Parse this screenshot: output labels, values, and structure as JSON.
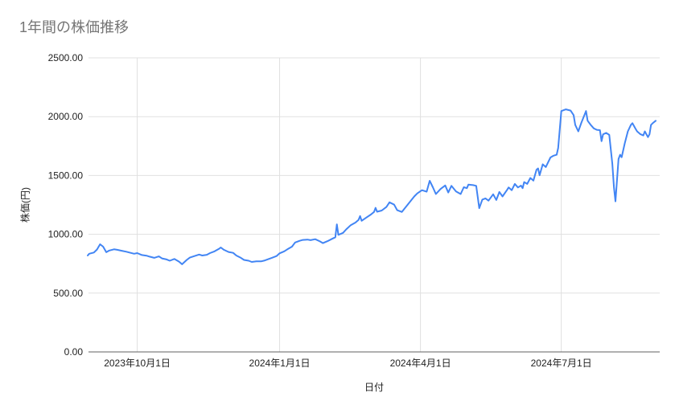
{
  "page": {
    "title": "1年間の株価推移"
  },
  "chart_data": {
    "type": "line",
    "title": "1年間の株価推移",
    "xlabel": "日付",
    "ylabel": "株価(円)",
    "legend": "none",
    "grid": true,
    "colors": {
      "series": "#4285f4",
      "grid": "#e0e0e0",
      "axis_line": "#616161",
      "title_text": "#757575",
      "tick_text": "#212121"
    },
    "ylim": [
      0,
      2500
    ],
    "y_ticks": [
      {
        "value": 0,
        "label": "0.00"
      },
      {
        "value": 500,
        "label": "500.00"
      },
      {
        "value": 1000,
        "label": "1000.00"
      },
      {
        "value": 1500,
        "label": "1500.00"
      },
      {
        "value": 2000,
        "label": "2000.00"
      },
      {
        "value": 2500,
        "label": "2500.00"
      }
    ],
    "x_ticks": [
      {
        "date": "2023-10-01",
        "label": "2023年10月1日"
      },
      {
        "date": "2024-01-01",
        "label": "2024年1月1日"
      },
      {
        "date": "2024-04-01",
        "label": "2024年4月1日"
      },
      {
        "date": "2024-07-01",
        "label": "2024年7月1日"
      }
    ],
    "points": [
      [
        "2023-08-30",
        820
      ],
      [
        "2023-08-31",
        835
      ],
      [
        "2023-09-03",
        845
      ],
      [
        "2023-09-05",
        870
      ],
      [
        "2023-09-07",
        915
      ],
      [
        "2023-09-09",
        895
      ],
      [
        "2023-09-11",
        848
      ],
      [
        "2023-09-13",
        862
      ],
      [
        "2023-09-16",
        872
      ],
      [
        "2023-09-18",
        868
      ],
      [
        "2023-09-21",
        860
      ],
      [
        "2023-09-24",
        852
      ],
      [
        "2023-09-26",
        845
      ],
      [
        "2023-09-29",
        835
      ],
      [
        "2023-10-01",
        840
      ],
      [
        "2023-10-04",
        824
      ],
      [
        "2023-10-07",
        818
      ],
      [
        "2023-10-09",
        810
      ],
      [
        "2023-10-12",
        800
      ],
      [
        "2023-10-15",
        812
      ],
      [
        "2023-10-17",
        795
      ],
      [
        "2023-10-20",
        786
      ],
      [
        "2023-10-22",
        775
      ],
      [
        "2023-10-25",
        790
      ],
      [
        "2023-10-28",
        768
      ],
      [
        "2023-10-30",
        745
      ],
      [
        "2023-11-02",
        782
      ],
      [
        "2023-11-04",
        802
      ],
      [
        "2023-11-07",
        815
      ],
      [
        "2023-11-10",
        828
      ],
      [
        "2023-11-12",
        820
      ],
      [
        "2023-11-15",
        826
      ],
      [
        "2023-11-17",
        840
      ],
      [
        "2023-11-20",
        855
      ],
      [
        "2023-11-23",
        878
      ],
      [
        "2023-11-24",
        888
      ],
      [
        "2023-11-26",
        868
      ],
      [
        "2023-11-29",
        850
      ],
      [
        "2023-12-02",
        842
      ],
      [
        "2023-12-04",
        820
      ],
      [
        "2023-12-07",
        800
      ],
      [
        "2023-12-09",
        782
      ],
      [
        "2023-12-12",
        775
      ],
      [
        "2023-12-14",
        765
      ],
      [
        "2023-12-17",
        770
      ],
      [
        "2023-12-20",
        770
      ],
      [
        "2023-12-22",
        776
      ],
      [
        "2023-12-25",
        790
      ],
      [
        "2023-12-27",
        800
      ],
      [
        "2023-12-30",
        815
      ],
      [
        "2024-01-01",
        838
      ],
      [
        "2024-01-04",
        855
      ],
      [
        "2024-01-06",
        872
      ],
      [
        "2024-01-09",
        895
      ],
      [
        "2024-01-11",
        930
      ],
      [
        "2024-01-14",
        945
      ],
      [
        "2024-01-16",
        952
      ],
      [
        "2024-01-19",
        955
      ],
      [
        "2024-01-21",
        950
      ],
      [
        "2024-01-24",
        958
      ],
      [
        "2024-01-27",
        940
      ],
      [
        "2024-01-29",
        925
      ],
      [
        "2024-02-01",
        942
      ],
      [
        "2024-02-04",
        962
      ],
      [
        "2024-02-06",
        975
      ],
      [
        "2024-02-07",
        1085
      ],
      [
        "2024-02-08",
        995
      ],
      [
        "2024-02-11",
        1012
      ],
      [
        "2024-02-13",
        1042
      ],
      [
        "2024-02-16",
        1078
      ],
      [
        "2024-02-19",
        1100
      ],
      [
        "2024-02-21",
        1122
      ],
      [
        "2024-02-22",
        1155
      ],
      [
        "2024-02-23",
        1115
      ],
      [
        "2024-02-26",
        1142
      ],
      [
        "2024-02-29",
        1168
      ],
      [
        "2024-03-02",
        1190
      ],
      [
        "2024-03-03",
        1225
      ],
      [
        "2024-03-04",
        1192
      ],
      [
        "2024-03-07",
        1202
      ],
      [
        "2024-03-10",
        1232
      ],
      [
        "2024-03-12",
        1272
      ],
      [
        "2024-03-15",
        1252
      ],
      [
        "2024-03-17",
        1205
      ],
      [
        "2024-03-20",
        1190
      ],
      [
        "2024-03-23",
        1240
      ],
      [
        "2024-03-25",
        1272
      ],
      [
        "2024-03-28",
        1322
      ],
      [
        "2024-03-30",
        1348
      ],
      [
        "2024-04-02",
        1375
      ],
      [
        "2024-04-05",
        1362
      ],
      [
        "2024-04-07",
        1455
      ],
      [
        "2024-04-09",
        1400
      ],
      [
        "2024-04-11",
        1342
      ],
      [
        "2024-04-14",
        1385
      ],
      [
        "2024-04-17",
        1415
      ],
      [
        "2024-04-19",
        1355
      ],
      [
        "2024-04-21",
        1412
      ],
      [
        "2024-04-24",
        1365
      ],
      [
        "2024-04-27",
        1342
      ],
      [
        "2024-04-29",
        1400
      ],
      [
        "2024-05-01",
        1392
      ],
      [
        "2024-05-02",
        1422
      ],
      [
        "2024-05-05",
        1418
      ],
      [
        "2024-05-07",
        1412
      ],
      [
        "2024-05-09",
        1222
      ],
      [
        "2024-05-11",
        1295
      ],
      [
        "2024-05-13",
        1305
      ],
      [
        "2024-05-15",
        1286
      ],
      [
        "2024-05-18",
        1340
      ],
      [
        "2024-05-20",
        1292
      ],
      [
        "2024-05-22",
        1360
      ],
      [
        "2024-05-24",
        1322
      ],
      [
        "2024-05-27",
        1378
      ],
      [
        "2024-05-28",
        1398
      ],
      [
        "2024-05-30",
        1375
      ],
      [
        "2024-06-01",
        1428
      ],
      [
        "2024-06-03",
        1398
      ],
      [
        "2024-06-05",
        1414
      ],
      [
        "2024-06-06",
        1392
      ],
      [
        "2024-06-07",
        1444
      ],
      [
        "2024-06-09",
        1428
      ],
      [
        "2024-06-11",
        1479
      ],
      [
        "2024-06-13",
        1456
      ],
      [
        "2024-06-15",
        1550
      ],
      [
        "2024-06-16",
        1560
      ],
      [
        "2024-06-17",
        1502
      ],
      [
        "2024-06-19",
        1595
      ],
      [
        "2024-06-21",
        1572
      ],
      [
        "2024-06-24",
        1653
      ],
      [
        "2024-06-26",
        1668
      ],
      [
        "2024-06-28",
        1676
      ],
      [
        "2024-06-29",
        1734
      ],
      [
        "2024-07-01",
        2048
      ],
      [
        "2024-07-04",
        2062
      ],
      [
        "2024-07-07",
        2052
      ],
      [
        "2024-07-09",
        2013
      ],
      [
        "2024-07-10",
        1930
      ],
      [
        "2024-07-12",
        1875
      ],
      [
        "2024-07-14",
        1950
      ],
      [
        "2024-07-17",
        2048
      ],
      [
        "2024-07-18",
        1965
      ],
      [
        "2024-07-20",
        1930
      ],
      [
        "2024-07-22",
        1900
      ],
      [
        "2024-07-24",
        1888
      ],
      [
        "2024-07-26",
        1885
      ],
      [
        "2024-07-27",
        1792
      ],
      [
        "2024-07-28",
        1850
      ],
      [
        "2024-07-30",
        1862
      ],
      [
        "2024-08-01",
        1845
      ],
      [
        "2024-08-03",
        1600
      ],
      [
        "2024-08-04",
        1400
      ],
      [
        "2024-08-05",
        1280
      ],
      [
        "2024-08-07",
        1640
      ],
      [
        "2024-08-08",
        1676
      ],
      [
        "2024-08-09",
        1655
      ],
      [
        "2024-08-11",
        1772
      ],
      [
        "2024-08-13",
        1875
      ],
      [
        "2024-08-15",
        1930
      ],
      [
        "2024-08-16",
        1945
      ],
      [
        "2024-08-18",
        1896
      ],
      [
        "2024-08-19",
        1875
      ],
      [
        "2024-08-21",
        1852
      ],
      [
        "2024-08-23",
        1840
      ],
      [
        "2024-08-24",
        1875
      ],
      [
        "2024-08-26",
        1826
      ],
      [
        "2024-08-27",
        1850
      ],
      [
        "2024-08-28",
        1930
      ],
      [
        "2024-08-29",
        1944
      ],
      [
        "2024-08-31",
        1965
      ]
    ]
  }
}
